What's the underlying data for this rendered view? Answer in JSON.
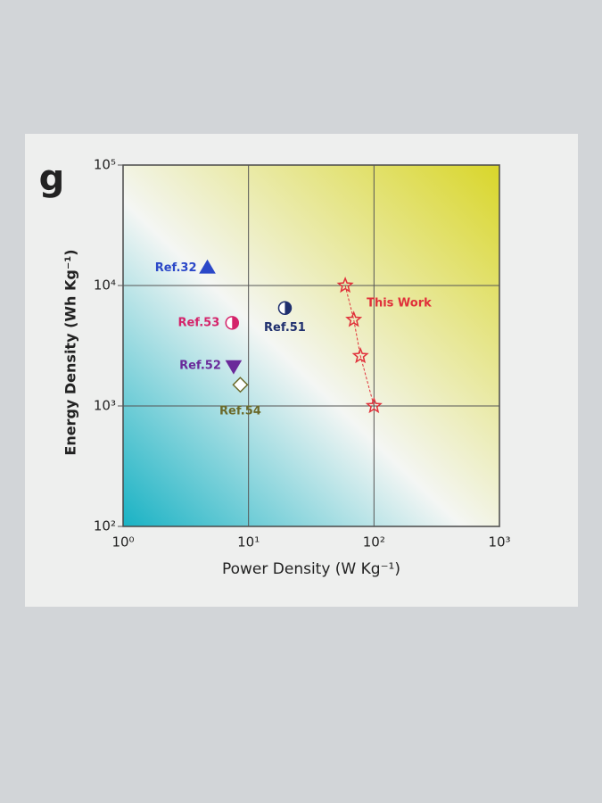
{
  "chart_data": {
    "type": "scatter",
    "panel_label": "g",
    "x_label": "Power Density (W Kg⁻¹)",
    "y_label": "Energy Density (Wh Kg⁻¹)",
    "log_x": true,
    "log_y": true,
    "grid": true,
    "xlim": [
      1,
      1000
    ],
    "ylim": [
      100,
      100000
    ],
    "xticks": [
      {
        "value": 1,
        "label": "10⁰"
      },
      {
        "value": 10,
        "label": "10¹"
      },
      {
        "value": 100,
        "label": "10²"
      },
      {
        "value": 1000,
        "label": "10³"
      }
    ],
    "yticks": [
      {
        "value": 100,
        "label": "10²"
      },
      {
        "value": 1000,
        "label": "10³"
      },
      {
        "value": 10000,
        "label": "10⁴"
      },
      {
        "value": 100000,
        "label": "10⁵"
      }
    ],
    "series": [
      {
        "name": "Ref.32",
        "color": "#2b48c8",
        "marker": "triangle-up",
        "x": [
          4.7
        ],
        "values": [
          14000
        ]
      },
      {
        "name": "Ref.53",
        "color": "#d4236a",
        "marker": "half-circle",
        "x": [
          7.4
        ],
        "values": [
          4900
        ]
      },
      {
        "name": "Ref.51",
        "color": "#1f2f6e",
        "marker": "half-circle",
        "x": [
          19.5
        ],
        "values": [
          6500
        ]
      },
      {
        "name": "Ref.52",
        "color": "#6a2a9a",
        "marker": "triangle-down",
        "x": [
          7.6
        ],
        "values": [
          2150
        ]
      },
      {
        "name": "Ref.54",
        "color": "#6b6a2a",
        "marker": "diamond",
        "x": [
          8.6
        ],
        "values": [
          1500
        ]
      },
      {
        "name": "This Work",
        "color": "#e0303a",
        "marker": "star",
        "connected": true,
        "x": [
          59,
          69,
          78,
          100
        ],
        "values": [
          10000,
          5200,
          2600,
          1000
        ]
      }
    ]
  }
}
